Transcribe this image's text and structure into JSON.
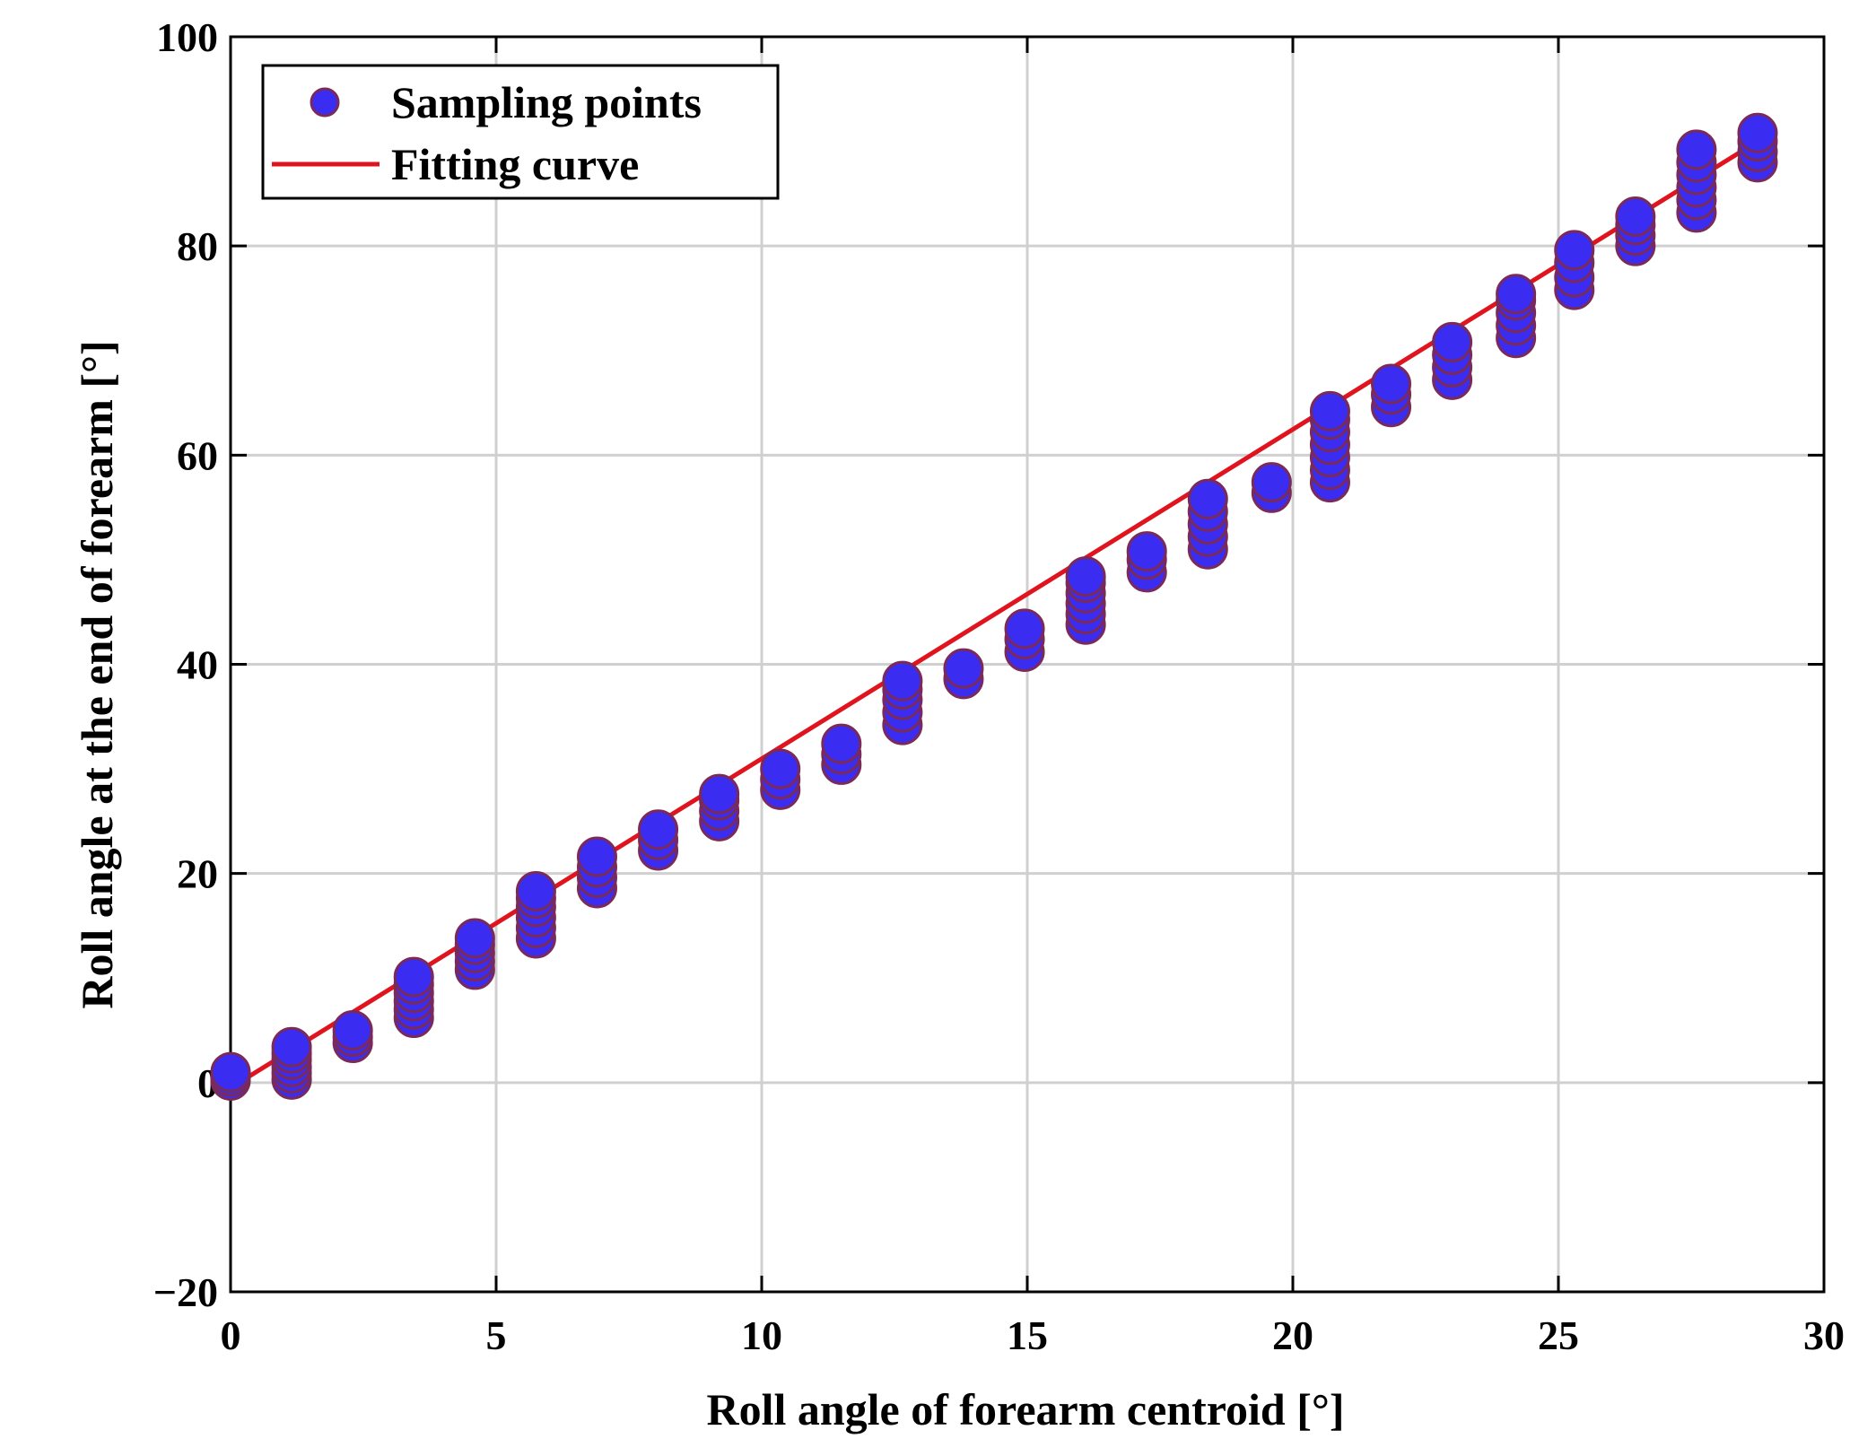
{
  "chart_data": {
    "type": "scatter",
    "title": "",
    "xlabel": "Roll angle of forearm centroid [°]",
    "ylabel": "Roll angle at the end of forearm [°]",
    "xlim": [
      0,
      30
    ],
    "ylim": [
      -20,
      100
    ],
    "xticks": [
      0,
      5,
      10,
      15,
      20,
      25,
      30
    ],
    "yticks": [
      -20,
      0,
      20,
      40,
      60,
      80,
      100
    ],
    "xtick_labels": [
      "0",
      "5",
      "10",
      "15",
      "20",
      "25",
      "30"
    ],
    "ytick_labels": [
      "−20",
      "0",
      "20",
      "40",
      "60",
      "80",
      "100"
    ],
    "grid": true,
    "legend_position": "top-left",
    "series": [
      {
        "name": "Sampling points",
        "kind": "scatter",
        "color": "#3a2cf0",
        "edge_color": "#7a2a5a",
        "groups": [
          {
            "x": 0.0,
            "y": [
              0.2,
              0.6,
              1.0
            ]
          },
          {
            "x": 1.15,
            "y": [
              0.3,
              0.9,
              1.5,
              2.2,
              2.8,
              3.4
            ]
          },
          {
            "x": 2.3,
            "y": [
              3.8,
              4.4,
              5.0
            ]
          },
          {
            "x": 3.45,
            "y": [
              6.2,
              7.0,
              7.8,
              8.6,
              9.4,
              10.1
            ]
          },
          {
            "x": 4.6,
            "y": [
              10.8,
              11.6,
              12.4,
              13.2,
              13.8
            ]
          },
          {
            "x": 5.75,
            "y": [
              13.8,
              14.8,
              15.8,
              16.8,
              17.6,
              18.3
            ]
          },
          {
            "x": 6.9,
            "y": [
              18.6,
              19.6,
              20.6,
              21.6
            ]
          },
          {
            "x": 8.05,
            "y": [
              22.2,
              23.2,
              24.2
            ]
          },
          {
            "x": 9.2,
            "y": [
              25.0,
              26.0,
              27.0,
              27.6
            ]
          },
          {
            "x": 10.35,
            "y": [
              28.0,
              29.0,
              30.0
            ]
          },
          {
            "x": 11.5,
            "y": [
              30.4,
              31.4,
              32.4
            ]
          },
          {
            "x": 12.65,
            "y": [
              34.2,
              35.4,
              36.6,
              37.6,
              38.4
            ]
          },
          {
            "x": 13.8,
            "y": [
              38.6,
              39.6
            ]
          },
          {
            "x": 14.95,
            "y": [
              41.2,
              42.4,
              43.4
            ]
          },
          {
            "x": 16.1,
            "y": [
              43.8,
              44.8,
              45.8,
              46.8,
              47.8,
              48.4
            ]
          },
          {
            "x": 17.25,
            "y": [
              48.8,
              50.0,
              50.8
            ]
          },
          {
            "x": 18.4,
            "y": [
              51.0,
              52.2,
              53.4,
              54.6,
              55.8
            ]
          },
          {
            "x": 19.6,
            "y": [
              56.4,
              57.4
            ]
          },
          {
            "x": 20.7,
            "y": [
              57.4,
              58.6,
              59.8,
              61.0,
              62.2,
              63.4,
              64.2
            ]
          },
          {
            "x": 21.85,
            "y": [
              64.6,
              65.8,
              66.8
            ]
          },
          {
            "x": 23.0,
            "y": [
              67.2,
              68.4,
              69.6,
              70.8
            ]
          },
          {
            "x": 24.2,
            "y": [
              71.2,
              72.4,
              73.6,
              74.8,
              75.4
            ]
          },
          {
            "x": 25.3,
            "y": [
              75.8,
              77.0,
              78.4,
              79.6
            ]
          },
          {
            "x": 26.45,
            "y": [
              80.0,
              81.0,
              82.0,
              82.8
            ]
          },
          {
            "x": 27.6,
            "y": [
              83.2,
              84.4,
              85.6,
              86.8,
              88.0,
              89.2
            ]
          },
          {
            "x": 28.75,
            "y": [
              88.0,
              89.0,
              90.0,
              90.8
            ]
          }
        ]
      },
      {
        "name": "Fitting curve",
        "kind": "line",
        "color": "#e0141e",
        "x": [
          0,
          28.75
        ],
        "y": [
          -0.5,
          90.0
        ]
      }
    ]
  }
}
